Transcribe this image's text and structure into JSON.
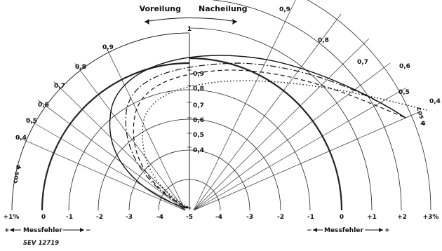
{
  "header": {
    "lead_label": "Voreilung",
    "lag_label": "Nacheilung",
    "top_value": "1"
  },
  "left_chart": {
    "cos_phi_labels": [
      "0,9",
      "0,8",
      "0,7",
      "0,6",
      "0,5",
      "0,4"
    ],
    "axis_title": "cos φ",
    "error_ticks": [
      "+1%",
      "0",
      "-1",
      "-2",
      "-3",
      "-4",
      "-5"
    ],
    "bottom_label": "Messfehler",
    "bottom_sign_left": "+",
    "bottom_sign_right": "−"
  },
  "right_chart": {
    "cos_phi_labels": [
      "0,9",
      "0,8",
      "0,7",
      "0,6",
      "0,5",
      "0,4"
    ],
    "axis_title": "cos φ",
    "error_ticks": [
      "-4",
      "-3",
      "-2",
      "-1",
      "0",
      "+1",
      "+2",
      "+3%"
    ],
    "bottom_label": "Messfehler",
    "bottom_sign_left": "−",
    "bottom_sign_right": "+"
  },
  "center_scale": {
    "labels": [
      "0,9",
      "0,8",
      "0,7",
      "0,6",
      "0,5",
      "0,4"
    ]
  },
  "footer": {
    "reference": "SEV 12719"
  }
}
